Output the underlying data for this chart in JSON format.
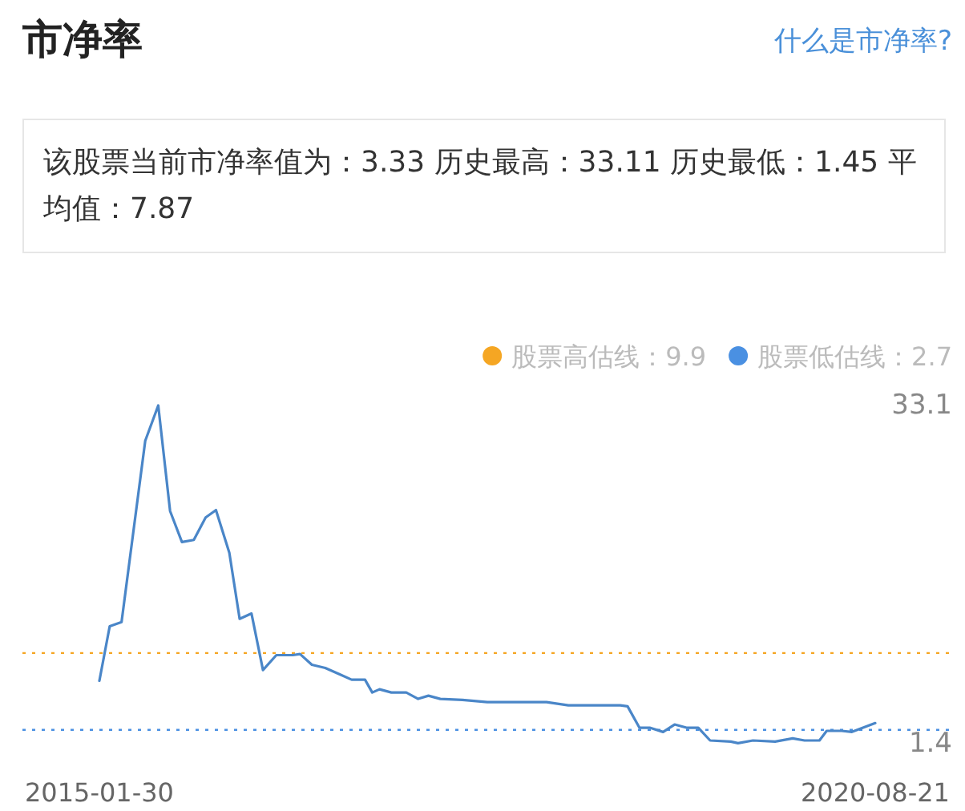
{
  "chart_data": {
    "type": "line",
    "title": "市净率",
    "annotations": [
      "什么是市净率?",
      "该股票当前市净率值为：3.33 历史最高：33.11 历史最低：1.45 平均值：7.87"
    ],
    "x": [
      "2015-01-30",
      "2015-02-26",
      "2015-03-29",
      "2015-05-30",
      "2015-07-03",
      "2015-08-03",
      "2015-09-03",
      "2015-10-04",
      "2015-11-04",
      "2015-12-01",
      "2016-01-05",
      "2016-02-01",
      "2016-03-03",
      "2016-04-02",
      "2016-05-07",
      "2016-06-19",
      "2016-07-08",
      "2016-08-08",
      "2016-09-12",
      "2016-10-20",
      "2016-11-20",
      "2016-12-25",
      "2017-01-13",
      "2017-02-01",
      "2017-03-04",
      "2017-04-12",
      "2017-05-13",
      "2017-06-09",
      "2017-07-10",
      "2017-09-06",
      "2017-11-10",
      "2018-04-14",
      "2018-06-10",
      "2018-10-24",
      "2018-11-12",
      "2018-12-13",
      "2019-01-09",
      "2019-02-13",
      "2019-03-15",
      "2019-04-15",
      "2019-05-16",
      "2019-06-16",
      "2019-08-09",
      "2019-08-28",
      "2019-10-06",
      "2019-12-03",
      "2020-01-18",
      "2020-02-18",
      "2020-03-28",
      "2020-04-16",
      "2020-05-25",
      "2020-06-21",
      "2020-08-21"
    ],
    "series": [
      {
        "color": "#4a86c8",
        "values": [
          7.3,
          12.4,
          12.8,
          29.8,
          33.1,
          23.2,
          20.3,
          20.5,
          22.6,
          23.3,
          19.3,
          13.1,
          13.6,
          8.3,
          9.7,
          9.7,
          9.8,
          8.8,
          8.5,
          7.9,
          7.4,
          7.4,
          6.2,
          6.5,
          6.2,
          6.2,
          5.6,
          5.9,
          5.6,
          5.5,
          5.3,
          5.3,
          5.0,
          5.0,
          4.9,
          2.9,
          2.9,
          2.5,
          3.2,
          2.9,
          2.9,
          1.7,
          1.6,
          1.45,
          1.7,
          1.6,
          1.9,
          1.7,
          1.7,
          2.6,
          2.6,
          2.5,
          3.33
        ]
      }
    ],
    "xlim": [
      "2015-01-30",
      "2020-08-21"
    ],
    "xticks": [
      {
        "value": "2015-01-30",
        "label": "2015-01-30"
      },
      {
        "value": "2020-08-21",
        "label": "2020-08-21"
      }
    ],
    "ylim": [
      1.4,
      33.1
    ],
    "yticks": [
      33.1,
      1.4
    ],
    "ref_lines": [
      {
        "axis": "y",
        "value": 9.9,
        "label": "股票高估线：9.9",
        "color": "#f5a623",
        "line_style": "dotted"
      },
      {
        "axis": "y",
        "value": 2.7,
        "label": "股票低估线：2.7",
        "color": "#4a90e2",
        "line_style": "dotted"
      }
    ],
    "legend": "top right",
    "line_style": "solid"
  }
}
